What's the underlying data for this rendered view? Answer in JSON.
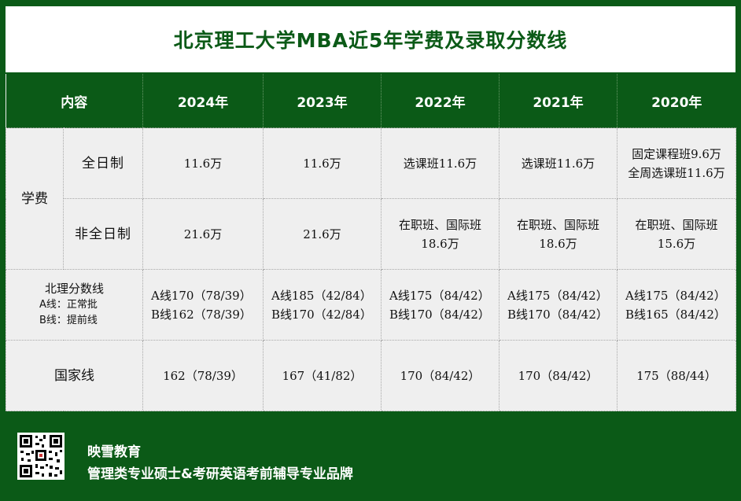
{
  "title": "北京理工大学MBA近5年学费及录取分数线",
  "table": {
    "headers": [
      "内容",
      "2024年",
      "2023年",
      "2022年",
      "2021年",
      "2020年"
    ],
    "tuition_label": "学费",
    "fulltime": {
      "label": "全日制",
      "values": [
        [
          "11.6万"
        ],
        [
          "11.6万"
        ],
        [
          "选课班11.6万"
        ],
        [
          "选课班11.6万"
        ],
        [
          "固定课程班9.6万",
          "全周选课班11.6万"
        ]
      ]
    },
    "parttime": {
      "label": "非全日制",
      "values": [
        [
          "21.6万"
        ],
        [
          "21.6万"
        ],
        [
          "在职班、国际班",
          "18.6万"
        ],
        [
          "在职班、国际班",
          "18.6万"
        ],
        [
          "在职班、国际班",
          "15.6万"
        ]
      ]
    },
    "school_line": {
      "label": "北理分数线",
      "note_a": "A线：正常批",
      "note_b": "B线：提前线",
      "values": [
        [
          "A线170（78/39）",
          "B线162（78/39）"
        ],
        [
          "A线185（42/84）",
          "B线170（42/84）"
        ],
        [
          "A线175（84/42）",
          "B线170（84/42）"
        ],
        [
          "A线175（84/42）",
          "B线170（84/42）"
        ],
        [
          "A线175（84/42）",
          "B线165（84/42）"
        ]
      ]
    },
    "national_line": {
      "label": "国家线",
      "values": [
        "162（78/39）",
        "167（41/82）",
        "170（84/42）",
        "170（84/42）",
        "175（88/44）"
      ]
    }
  },
  "footer": {
    "brand": "映雪教育",
    "slogan": "管理类专业硕士&考研英语考前辅导专业品牌",
    "qr_icon": "qr-code-icon"
  },
  "colors": {
    "green": "#0b5a17",
    "cell_bg": "#efefef"
  }
}
